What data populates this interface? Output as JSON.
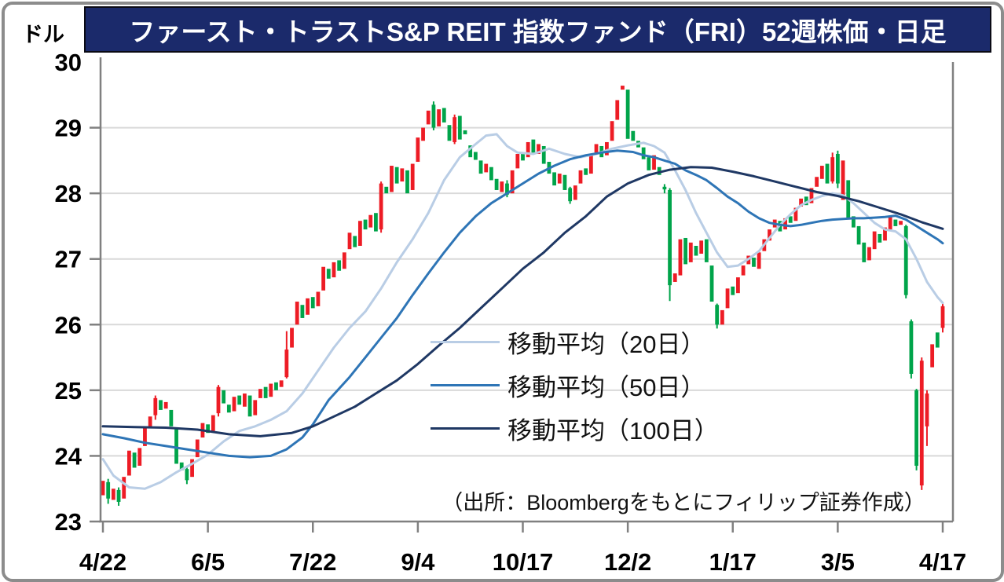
{
  "title": "ファースト・トラストS&P REIT 指数ファンド（FRI）52週株価・日足",
  "y_axis": {
    "unit_label": "ドル",
    "ticks": [
      30,
      29,
      28,
      27,
      26,
      25,
      24,
      23
    ]
  },
  "x_axis": {
    "ticks": [
      "4/22",
      "6/5",
      "7/22",
      "9/4",
      "10/17",
      "12/2",
      "1/17",
      "3/5",
      "4/17"
    ]
  },
  "source_note": "（出所：Bloombergをもとにフィリップ証券作成）",
  "colors": {
    "title_bg": "#1b2a6b",
    "grid": "#d9d9d9",
    "axis": "#808080",
    "up_candle_red": "#ed1c25",
    "down_candle_green": "#00a44a"
  },
  "chart_data": {
    "type": "candlestick",
    "title": "ファースト・トラストS&P REIT 指数ファンド（FRI）52週株価・日足",
    "ylabel": "ドル",
    "ylim": [
      23,
      30
    ],
    "grid": "horizontal",
    "x_tick_labels": [
      "4/22",
      "6/5",
      "7/22",
      "9/4",
      "10/17",
      "12/2",
      "1/17",
      "3/5",
      "4/17"
    ],
    "candles_per_tick_interval": 20,
    "up_color": "#ed1c25",
    "down_color": "#00a44a",
    "candle_format": "[open, close] or [open, close, low, high]",
    "candles": [
      [
        23.4,
        23.62
      ],
      [
        23.6,
        23.35,
        23.27,
        23.65
      ],
      [
        23.33,
        23.5
      ],
      [
        23.48,
        23.3,
        23.24,
        23.52
      ],
      [
        23.35,
        23.68
      ],
      [
        23.7,
        24.08
      ],
      [
        24.05,
        23.82
      ],
      [
        23.85,
        24.12
      ],
      [
        24.15,
        24.45
      ],
      [
        24.42,
        24.6
      ],
      [
        24.62,
        24.88,
        24.55,
        24.92
      ],
      [
        24.85,
        24.7
      ],
      [
        24.72,
        24.82
      ],
      [
        24.7,
        24.45
      ],
      [
        24.42,
        23.88
      ],
      [
        23.9,
        23.78
      ],
      [
        23.8,
        23.63,
        23.57,
        23.85
      ],
      [
        23.68,
        23.95
      ],
      [
        23.98,
        24.25
      ],
      [
        24.28,
        24.5
      ],
      [
        24.48,
        24.35
      ],
      [
        24.38,
        24.62
      ],
      [
        24.65,
        25.05,
        24.6,
        25.08
      ],
      [
        25.0,
        24.8
      ],
      [
        24.78,
        24.66
      ],
      [
        24.68,
        24.9
      ],
      [
        24.92,
        24.78
      ],
      [
        24.75,
        24.95
      ],
      [
        24.92,
        24.6
      ],
      [
        24.62,
        24.85
      ],
      [
        24.88,
        25.02
      ],
      [
        25.05,
        24.88
      ],
      [
        24.9,
        25.1
      ],
      [
        25.12,
        25.0
      ],
      [
        25.05,
        25.15
      ],
      [
        25.2,
        25.62,
        25.18,
        25.9
      ],
      [
        25.65,
        25.95
      ],
      [
        26.0,
        26.35
      ],
      [
        26.3,
        26.1
      ],
      [
        26.15,
        26.4
      ],
      [
        26.42,
        26.25
      ],
      [
        26.28,
        26.5
      ],
      [
        26.52,
        26.88
      ],
      [
        26.85,
        26.7
      ],
      [
        26.72,
        26.95
      ],
      [
        26.98,
        26.82
      ],
      [
        26.85,
        27.1
      ],
      [
        27.15,
        27.4
      ],
      [
        27.35,
        27.18
      ],
      [
        27.2,
        27.58
      ],
      [
        27.6,
        27.45
      ],
      [
        27.48,
        27.67
      ],
      [
        27.7,
        27.42
      ],
      [
        27.45,
        28.15,
        27.4,
        28.18
      ],
      [
        28.1,
        28.0
      ],
      [
        28.02,
        28.42
      ],
      [
        28.4,
        28.15
      ],
      [
        28.18,
        28.38
      ],
      [
        28.35,
        28.0
      ],
      [
        28.05,
        28.45
      ],
      [
        28.48,
        28.85
      ],
      [
        28.8,
        29.0
      ],
      [
        29.05,
        29.26
      ],
      [
        29.35,
        29.0,
        28.96,
        29.4
      ],
      [
        29.02,
        29.28
      ],
      [
        29.3,
        29.08
      ],
      [
        29.04,
        28.8
      ],
      [
        28.78,
        29.16,
        28.75,
        29.2
      ],
      [
        29.18,
        28.82
      ],
      [
        28.96,
        28.9
      ],
      [
        28.73,
        28.55
      ],
      [
        28.63,
        28.51
      ],
      [
        28.5,
        28.3
      ],
      [
        28.32,
        28.45
      ],
      [
        28.4,
        28.2
      ],
      [
        28.22,
        28.05
      ],
      [
        28.02,
        28.18
      ],
      [
        28.15,
        27.98,
        27.94,
        28.2
      ],
      [
        28.0,
        28.35
      ],
      [
        28.38,
        28.6
      ],
      [
        28.62,
        28.5
      ],
      [
        28.55,
        28.78
      ],
      [
        28.82,
        28.62
      ],
      [
        28.6,
        28.75
      ],
      [
        28.72,
        28.45
      ],
      [
        28.48,
        28.3
      ],
      [
        28.32,
        28.12
      ],
      [
        28.15,
        28.3
      ],
      [
        28.28,
        28.05
      ],
      [
        28.08,
        27.88,
        27.84,
        28.1
      ],
      [
        27.9,
        28.12
      ],
      [
        28.15,
        28.35
      ],
      [
        28.38,
        28.28
      ],
      [
        28.3,
        28.6
      ],
      [
        28.62,
        28.75
      ],
      [
        28.72,
        28.55
      ],
      [
        28.58,
        28.78
      ],
      [
        28.8,
        29.1
      ],
      [
        29.12,
        29.42
      ],
      [
        29.58,
        29.64
      ],
      [
        29.58,
        28.83
      ],
      [
        28.95,
        28.8
      ],
      [
        28.8,
        28.7
      ],
      [
        28.7,
        28.52
      ],
      [
        28.55,
        28.35
      ],
      [
        28.36,
        28.58
      ],
      [
        28.4,
        28.28
      ],
      [
        28.1,
        28.06,
        28.0,
        28.14
      ],
      [
        28.05,
        26.6,
        26.36,
        28.08
      ],
      [
        26.65,
        26.78
      ],
      [
        26.75,
        27.3
      ],
      [
        27.32,
        26.92
      ],
      [
        26.95,
        27.25
      ],
      [
        27.2,
        27.05
      ],
      [
        27.08,
        27.28
      ],
      [
        27.3,
        26.95
      ],
      [
        26.9,
        26.35
      ],
      [
        26.3,
        26.0,
        25.94,
        26.32
      ],
      [
        26.0,
        26.22
      ],
      [
        26.25,
        26.55
      ],
      [
        26.58,
        26.45
      ],
      [
        26.48,
        26.72
      ],
      [
        26.75,
        26.9
      ],
      [
        26.92,
        27.05
      ],
      [
        27.02,
        26.88
      ],
      [
        26.85,
        27.1
      ],
      [
        27.12,
        27.3
      ],
      [
        27.28,
        27.45
      ],
      [
        27.48,
        27.6
      ],
      [
        27.58,
        27.42
      ],
      [
        27.45,
        27.62
      ],
      [
        27.65,
        27.55
      ],
      [
        27.58,
        27.78
      ],
      [
        27.8,
        27.92
      ],
      [
        27.95,
        27.82
      ],
      [
        27.85,
        28.08
      ],
      [
        28.1,
        28.25
      ],
      [
        28.22,
        28.42
      ],
      [
        28.45,
        28.15
      ],
      [
        28.18,
        28.55,
        28.15,
        28.62
      ],
      [
        28.6,
        28.15,
        28.08,
        28.65
      ],
      [
        27.9,
        28.5
      ],
      [
        28.2,
        27.6
      ],
      [
        27.65,
        27.48
      ],
      [
        27.5,
        27.22
      ],
      [
        27.25,
        26.95
      ],
      [
        26.98,
        27.18
      ],
      [
        27.15,
        27.42
      ],
      [
        27.38,
        27.25
      ],
      [
        27.28,
        27.48
      ],
      [
        27.45,
        27.65
      ],
      [
        27.6,
        27.5
      ],
      [
        27.52,
        27.58
      ],
      [
        27.5,
        26.45,
        26.4,
        27.52
      ],
      [
        26.05,
        25.25,
        25.18,
        26.08
      ],
      [
        25.0,
        23.85,
        23.78,
        25.02
      ],
      [
        23.55,
        25.45,
        23.48,
        25.5
      ],
      [
        24.45,
        24.95,
        24.15,
        25.0
      ],
      [
        25.35,
        25.7
      ],
      [
        25.88,
        25.65
      ],
      [
        25.95,
        26.28,
        25.88,
        26.33
      ]
    ],
    "moving_averages": [
      {
        "name": "移動平均（20日）",
        "color": "#b9cde5",
        "points": [
          [
            0,
            23.95
          ],
          [
            2,
            23.7
          ],
          [
            5,
            23.52
          ],
          [
            8,
            23.5
          ],
          [
            11,
            23.6
          ],
          [
            14,
            23.75
          ],
          [
            17,
            23.88
          ],
          [
            20,
            24.02
          ],
          [
            23,
            24.22
          ],
          [
            26,
            24.38
          ],
          [
            29,
            24.45
          ],
          [
            32,
            24.55
          ],
          [
            35,
            24.68
          ],
          [
            38,
            24.95
          ],
          [
            41,
            25.3
          ],
          [
            44,
            25.65
          ],
          [
            47,
            25.95
          ],
          [
            50,
            26.2
          ],
          [
            53,
            26.55
          ],
          [
            56,
            26.95
          ],
          [
            59,
            27.3
          ],
          [
            62,
            27.7
          ],
          [
            65,
            28.2
          ],
          [
            68,
            28.55
          ],
          [
            71,
            28.75
          ],
          [
            73,
            28.88
          ],
          [
            75,
            28.9
          ],
          [
            77,
            28.72
          ],
          [
            79,
            28.62
          ],
          [
            82,
            28.6
          ],
          [
            85,
            28.68
          ],
          [
            88,
            28.6
          ],
          [
            91,
            28.55
          ],
          [
            94,
            28.6
          ],
          [
            97,
            28.68
          ],
          [
            100,
            28.73
          ],
          [
            103,
            28.77
          ],
          [
            105,
            28.72
          ],
          [
            107,
            28.62
          ],
          [
            109,
            28.35
          ],
          [
            111,
            28.05
          ],
          [
            113,
            27.7
          ],
          [
            115,
            27.4
          ],
          [
            117,
            27.1
          ],
          [
            119,
            26.88
          ],
          [
            121,
            26.9
          ],
          [
            123,
            27.0
          ],
          [
            125,
            27.12
          ],
          [
            127,
            27.32
          ],
          [
            129,
            27.52
          ],
          [
            131,
            27.68
          ],
          [
            133,
            27.82
          ],
          [
            135,
            27.9
          ],
          [
            137,
            27.96
          ],
          [
            139,
            28.0
          ],
          [
            141,
            27.97
          ],
          [
            143,
            27.85
          ],
          [
            145,
            27.7
          ],
          [
            147,
            27.55
          ],
          [
            149,
            27.45
          ],
          [
            151,
            27.42
          ],
          [
            153,
            27.3
          ],
          [
            155,
            27.0
          ],
          [
            157,
            26.65
          ],
          [
            159,
            26.42
          ],
          [
            160,
            26.33
          ]
        ]
      },
      {
        "name": "移動平均（50日）",
        "color": "#2e75b6",
        "points": [
          [
            0,
            24.33
          ],
          [
            4,
            24.27
          ],
          [
            8,
            24.2
          ],
          [
            12,
            24.15
          ],
          [
            16,
            24.1
          ],
          [
            20,
            24.05
          ],
          [
            24,
            24.0
          ],
          [
            28,
            23.98
          ],
          [
            32,
            24.0
          ],
          [
            35,
            24.1
          ],
          [
            38,
            24.28
          ],
          [
            40,
            24.48
          ],
          [
            43,
            24.85
          ],
          [
            47,
            25.2
          ],
          [
            50,
            25.5
          ],
          [
            53,
            25.8
          ],
          [
            56,
            26.1
          ],
          [
            59,
            26.45
          ],
          [
            62,
            26.78
          ],
          [
            65,
            27.1
          ],
          [
            68,
            27.4
          ],
          [
            71,
            27.65
          ],
          [
            74,
            27.85
          ],
          [
            77,
            28.0
          ],
          [
            80,
            28.15
          ],
          [
            83,
            28.3
          ],
          [
            86,
            28.42
          ],
          [
            89,
            28.52
          ],
          [
            92,
            28.58
          ],
          [
            95,
            28.62
          ],
          [
            98,
            28.65
          ],
          [
            101,
            28.63
          ],
          [
            103,
            28.58
          ],
          [
            105,
            28.55
          ],
          [
            107,
            28.5
          ],
          [
            109,
            28.45
          ],
          [
            111,
            28.35
          ],
          [
            113,
            28.28
          ],
          [
            115,
            28.2
          ],
          [
            117,
            28.08
          ],
          [
            119,
            27.95
          ],
          [
            121,
            27.85
          ],
          [
            123,
            27.72
          ],
          [
            125,
            27.62
          ],
          [
            127,
            27.55
          ],
          [
            129,
            27.52
          ],
          [
            131,
            27.5
          ],
          [
            133,
            27.52
          ],
          [
            135,
            27.55
          ],
          [
            137,
            27.58
          ],
          [
            139,
            27.6
          ],
          [
            141,
            27.61
          ],
          [
            143,
            27.62
          ],
          [
            145,
            27.62
          ],
          [
            147,
            27.63
          ],
          [
            149,
            27.64
          ],
          [
            151,
            27.66
          ],
          [
            153,
            27.6
          ],
          [
            155,
            27.5
          ],
          [
            157,
            27.4
          ],
          [
            159,
            27.3
          ],
          [
            160,
            27.24
          ]
        ]
      },
      {
        "name": "移動平均（100日）",
        "color": "#1f3864",
        "points": [
          [
            0,
            24.45
          ],
          [
            6,
            24.44
          ],
          [
            12,
            24.43
          ],
          [
            18,
            24.4
          ],
          [
            24,
            24.33
          ],
          [
            30,
            24.3
          ],
          [
            36,
            24.35
          ],
          [
            40,
            24.45
          ],
          [
            44,
            24.6
          ],
          [
            48,
            24.75
          ],
          [
            52,
            24.95
          ],
          [
            56,
            25.15
          ],
          [
            60,
            25.4
          ],
          [
            64,
            25.68
          ],
          [
            68,
            25.95
          ],
          [
            72,
            26.25
          ],
          [
            76,
            26.55
          ],
          [
            80,
            26.85
          ],
          [
            84,
            27.1
          ],
          [
            88,
            27.4
          ],
          [
            92,
            27.65
          ],
          [
            96,
            27.95
          ],
          [
            100,
            28.15
          ],
          [
            104,
            28.28
          ],
          [
            108,
            28.36
          ],
          [
            112,
            28.4
          ],
          [
            116,
            28.39
          ],
          [
            120,
            28.33
          ],
          [
            124,
            28.26
          ],
          [
            128,
            28.18
          ],
          [
            132,
            28.1
          ],
          [
            136,
            28.02
          ],
          [
            140,
            27.96
          ],
          [
            144,
            27.88
          ],
          [
            148,
            27.78
          ],
          [
            152,
            27.68
          ],
          [
            156,
            27.56
          ],
          [
            160,
            27.46
          ]
        ]
      }
    ],
    "legend_position": "center-right, inside plot",
    "source_note": "（出所：Bloombergをもとにフィリップ証券作成）"
  }
}
